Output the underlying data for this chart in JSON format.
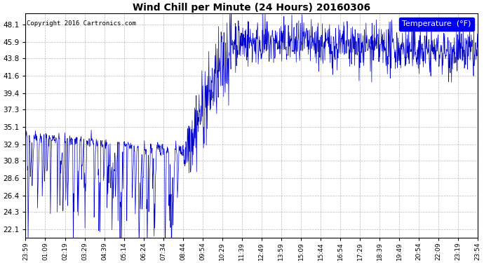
{
  "title": "Wind Chill per Minute (24 Hours) 20160306",
  "copyright_text": "Copyright 2016 Cartronics.com",
  "legend_label": "Temperature  (°F)",
  "line_color": "#0000cc",
  "background_color": "#ffffff",
  "plot_bg_color": "#ffffff",
  "grid_color": "#aaaaaa",
  "yticks": [
    22.1,
    24.3,
    26.4,
    28.6,
    30.8,
    32.9,
    35.1,
    37.3,
    39.4,
    41.6,
    43.8,
    45.9,
    48.1
  ],
  "ylim": [
    21.0,
    49.5
  ],
  "xtick_labels": [
    "23:59",
    "01:09",
    "02:19",
    "03:29",
    "04:39",
    "05:14",
    "06:24",
    "07:34",
    "08:44",
    "09:54",
    "10:29",
    "11:39",
    "12:49",
    "13:59",
    "15:09",
    "15:44",
    "16:54",
    "17:29",
    "18:39",
    "19:49",
    "20:54",
    "22:09",
    "23:19",
    "23:54"
  ],
  "num_points": 1440,
  "seed": 42
}
